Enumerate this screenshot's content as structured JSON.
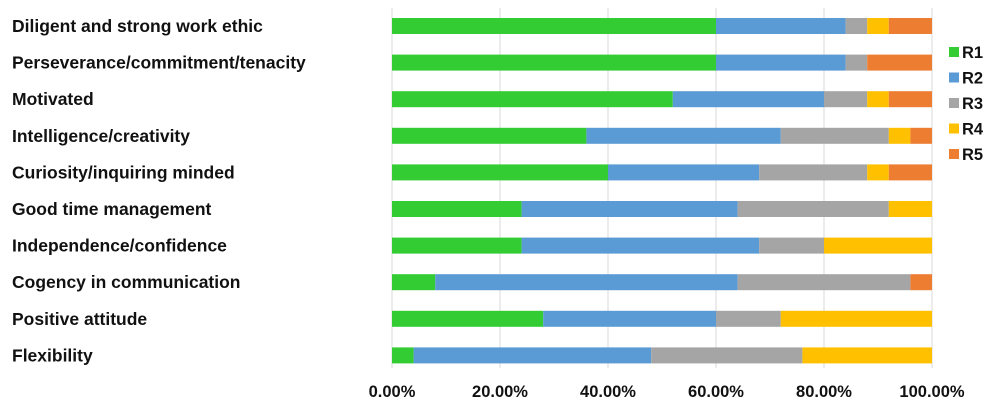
{
  "chart_data": {
    "type": "bar",
    "orientation": "horizontal",
    "stacked": true,
    "categories": [
      "Diligent and strong work ethic",
      "Perseverance/commitment/tenacity",
      "Motivated",
      "Intelligence/creativity",
      "Curiosity/inquiring minded",
      "Good time management",
      "Independence/confidence",
      "Cogency in communication",
      "Positive attitude",
      "Flexibility"
    ],
    "series": [
      {
        "name": "R1",
        "color": "#33cc33",
        "values": [
          60,
          60,
          52,
          36,
          40,
          24,
          24,
          8,
          28,
          4
        ]
      },
      {
        "name": "R2",
        "color": "#5b9bd5",
        "values": [
          24,
          24,
          28,
          36,
          28,
          40,
          44,
          56,
          32,
          44
        ]
      },
      {
        "name": "R3",
        "color": "#a5a5a5",
        "values": [
          4,
          4,
          8,
          20,
          20,
          28,
          12,
          32,
          12,
          28
        ]
      },
      {
        "name": "R4",
        "color": "#ffc000",
        "values": [
          4,
          0,
          4,
          4,
          4,
          8,
          20,
          0,
          28,
          24
        ]
      },
      {
        "name": "R5",
        "color": "#ed7d31",
        "values": [
          8,
          12,
          8,
          4,
          8,
          0,
          0,
          4,
          0,
          0
        ]
      }
    ],
    "xlim": [
      0,
      100
    ],
    "xticks": [
      "0.00%",
      "20.00%",
      "40.00%",
      "60.00%",
      "80.00%",
      "100.00%"
    ],
    "grid": true,
    "legend_position": "right"
  }
}
